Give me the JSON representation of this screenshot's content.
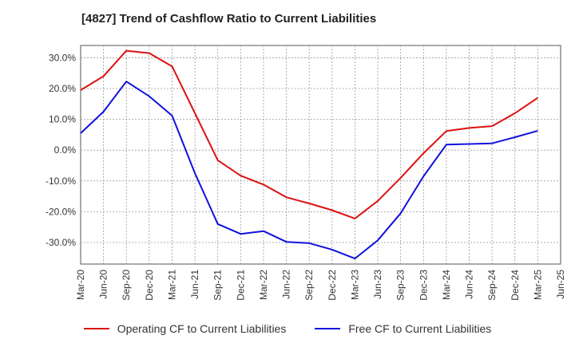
{
  "title": "[4827]  Trend of Cashflow Ratio to Current Liabilities",
  "chart_data": {
    "type": "line",
    "title": "[4827]  Trend of Cashflow Ratio to Current Liabilities",
    "xlabel": "",
    "ylabel": "",
    "ylim": [
      -37,
      34
    ],
    "yticks": [
      -30,
      -20,
      -10,
      0,
      10,
      20,
      30
    ],
    "ytick_labels": [
      "-30.0%",
      "-20.0%",
      "-10.0%",
      "0.0%",
      "10.0%",
      "20.0%",
      "30.0%"
    ],
    "x": [
      "Mar-20",
      "Jun-20",
      "Sep-20",
      "Dec-20",
      "Mar-21",
      "Jun-21",
      "Sep-21",
      "Dec-21",
      "Mar-22",
      "Jun-22",
      "Sep-22",
      "Dec-22",
      "Mar-23",
      "Jun-23",
      "Sep-23",
      "Dec-23",
      "Mar-24",
      "Jun-24",
      "Sep-24",
      "Dec-24",
      "Mar-25",
      "Jun-25"
    ],
    "grid": true,
    "legend_position": "bottom",
    "series": [
      {
        "name": "Operating CF to Current Liabilities",
        "color": "#dd1111",
        "values": [
          19.5,
          24.0,
          32.3,
          31.5,
          27.2,
          12.0,
          -3.3,
          -8.3,
          -11.2,
          -15.3,
          -17.3,
          -19.5,
          -22.2,
          -16.5,
          -9.0,
          -1.0,
          6.2,
          7.2,
          7.8,
          12.0,
          17.0,
          null
        ]
      },
      {
        "name": "Free CF to Current Liabilities",
        "color": "#1111dd",
        "values": [
          5.5,
          12.5,
          22.3,
          17.5,
          11.2,
          -7.5,
          -24.0,
          -27.2,
          -26.3,
          -29.8,
          -30.2,
          -32.3,
          -35.2,
          -29.3,
          -20.5,
          -8.5,
          1.8,
          2.0,
          2.2,
          4.2,
          6.3,
          null
        ]
      }
    ]
  }
}
